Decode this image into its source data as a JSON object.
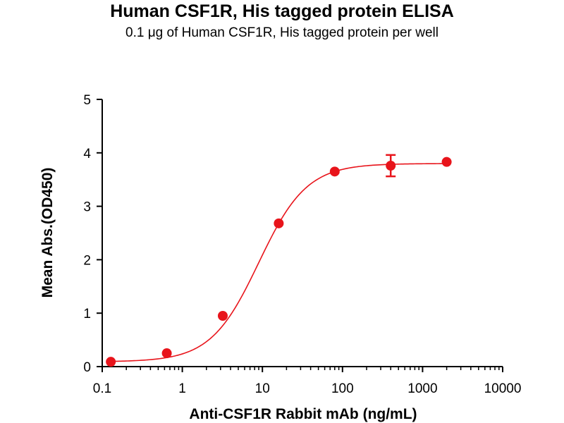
{
  "chart_data": {
    "type": "scatter",
    "title": "Human CSF1R, His tagged protein ELISA",
    "subtitle": "0.1 μg of Human CSF1R, His tagged protein per well",
    "xlabel": "Anti-CSF1R Rabbit mAb (ng/mL)",
    "ylabel": "Mean Abs.(OD450)",
    "xscale": "log",
    "xlim": [
      0.1,
      10000
    ],
    "ylim": [
      0,
      5
    ],
    "x_ticks": [
      0.1,
      1,
      10,
      100,
      1000,
      10000
    ],
    "x_tick_labels": [
      "0.1",
      "1",
      "10",
      "100",
      "1000",
      "10000"
    ],
    "y_ticks": [
      0,
      1,
      2,
      3,
      4,
      5
    ],
    "y_tick_labels": [
      "0",
      "1",
      "2",
      "3",
      "4",
      "5"
    ],
    "grid": false,
    "color": "#e8141b",
    "series": [
      {
        "x": [
          0.128,
          0.64,
          3.2,
          16,
          80,
          400,
          2000
        ],
        "y": [
          0.09,
          0.25,
          0.95,
          2.68,
          3.65,
          3.76,
          3.83
        ],
        "error": [
          0.02,
          0.02,
          0.03,
          0.03,
          0.03,
          0.2,
          0.03
        ]
      }
    ]
  }
}
